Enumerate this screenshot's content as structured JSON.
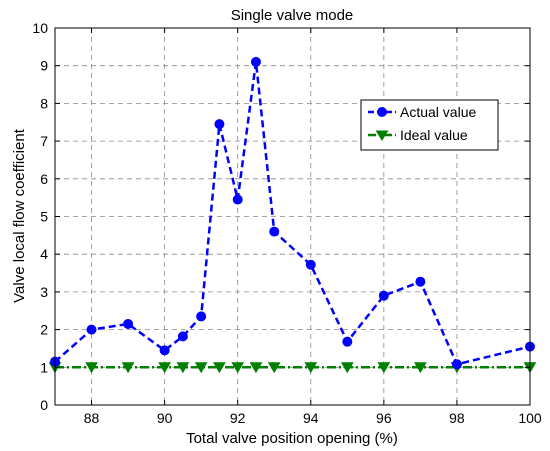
{
  "chart_data": {
    "type": "line",
    "title": "Single valve mode",
    "xlabel": "Total valve position opening (%)",
    "ylabel": "Valve local flow coefficient",
    "xlim": [
      87,
      100
    ],
    "ylim": [
      0,
      10
    ],
    "xticks": [
      88,
      90,
      92,
      94,
      96,
      98,
      100
    ],
    "yticks": [
      0,
      1,
      2,
      3,
      4,
      5,
      6,
      7,
      8,
      9,
      10
    ],
    "grid": true,
    "legend": "top-right",
    "series": [
      {
        "name": "Actual value",
        "color": "#0000ff",
        "marker": "circle",
        "line": "dashed",
        "x": [
          87,
          88,
          89,
          90,
          90.5,
          91,
          91.5,
          92,
          92.5,
          93,
          94,
          95,
          96,
          97,
          98,
          100
        ],
        "y": [
          1.15,
          2.0,
          2.15,
          1.45,
          1.82,
          2.35,
          7.45,
          5.45,
          9.1,
          4.6,
          3.72,
          1.68,
          2.9,
          3.27,
          1.08,
          1.55
        ]
      },
      {
        "name": "Ideal value",
        "color": "#008000",
        "marker": "triangle-down",
        "line": "dash-dot",
        "x": [
          87,
          88,
          89,
          90,
          90.5,
          91,
          91.5,
          92,
          92.5,
          93,
          94,
          95,
          96,
          97,
          98,
          100
        ],
        "y": [
          1,
          1,
          1,
          1,
          1,
          1,
          1,
          1,
          1,
          1,
          1,
          1,
          1,
          1,
          1,
          1
        ]
      }
    ]
  }
}
